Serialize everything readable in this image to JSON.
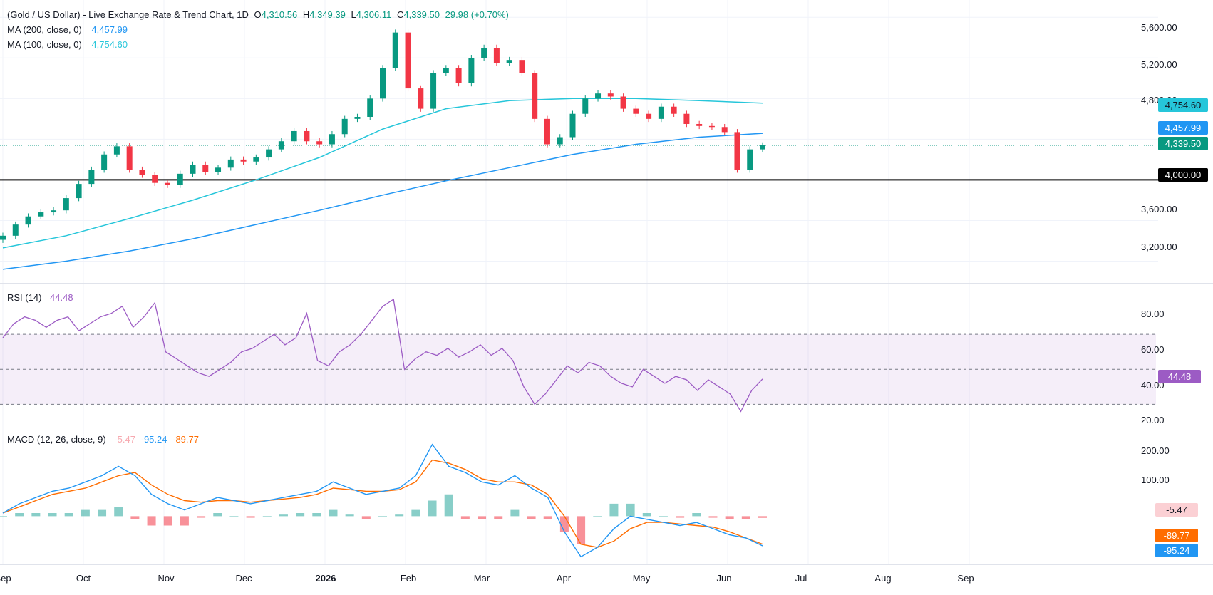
{
  "header": {
    "title": "(Gold / US Dollar) - Live Exchange Rate & Trend Chart, 1D",
    "ohlc": {
      "o_label": "O",
      "o_value": "4,310.56",
      "h_label": "H",
      "h_value": "4,349.39",
      "l_label": "L",
      "l_value": "4,306.11",
      "c_label": "C",
      "c_value": "4,339.50",
      "change": "29.98 (+0.70%)"
    },
    "ma200_label": "MA (200, close, 0)",
    "ma200_value": "4,457.99",
    "ma100_label": "MA (100, close, 0)",
    "ma100_value": "4,754.60"
  },
  "price_axis": {
    "ticks": [
      "5,600.00",
      "5,200.00",
      "4,800.00",
      "3,600.00",
      "3,200.00"
    ],
    "tags": {
      "ma100": "4,754.60",
      "ma200": "4,457.99",
      "last": "4,339.50",
      "level": "4,000.00"
    }
  },
  "rsi": {
    "label": "RSI (14)",
    "value": "44.48",
    "ticks": [
      "80.00",
      "60.00",
      "40.00",
      "20.00"
    ],
    "tag": "44.48"
  },
  "macd": {
    "label": "MACD (12, 26, close, 9)",
    "hist_value": "-5.47",
    "macd_value": "-95.24",
    "signal_value": "-89.77",
    "ticks": [
      "200.00",
      "100.00"
    ],
    "tags": {
      "hist": "-5.47",
      "signal": "-89.77",
      "macd": "-95.24"
    }
  },
  "time_axis": {
    "labels": [
      "Sep",
      "Oct",
      "Nov",
      "Dec",
      "2026",
      "Feb",
      "Mar",
      "Apr",
      "May",
      "Jun",
      "Jul",
      "Aug",
      "Sep"
    ]
  },
  "colors": {
    "up": "#089981",
    "down": "#f23645",
    "ma100": "#26c6da",
    "ma200": "#2196f3",
    "rsi": "#9c5bc4",
    "macd": "#2196f3",
    "signal": "#ff6d00",
    "hist_up": "#26a69a",
    "hist_down": "#f23645",
    "level": "#000000"
  },
  "chart_data": [
    {
      "type": "candlestick",
      "title": "(Gold / US Dollar) - Live Exchange Rate & Trend Chart, 1D",
      "x_range": [
        "Sep",
        "Jun"
      ],
      "ylim": [
        3000,
        5700
      ],
      "horizontal_line": 4000,
      "close_points": [
        [
          "Sep",
          3450
        ],
        [
          "Sep",
          3560
        ],
        [
          "Sep",
          3640
        ],
        [
          "Sep",
          3680
        ],
        [
          "Sep",
          3700
        ],
        [
          "Oct",
          3820
        ],
        [
          "Oct",
          3960
        ],
        [
          "Oct",
          4100
        ],
        [
          "Oct",
          4250
        ],
        [
          "Oct",
          4330
        ],
        [
          "Oct",
          4100
        ],
        [
          "Oct",
          4050
        ],
        [
          "Nov",
          3970
        ],
        [
          "Nov",
          3950
        ],
        [
          "Nov",
          4060
        ],
        [
          "Nov",
          4150
        ],
        [
          "Nov",
          4080
        ],
        [
          "Nov",
          4120
        ],
        [
          "Dec",
          4200
        ],
        [
          "Dec",
          4180
        ],
        [
          "Dec",
          4220
        ],
        [
          "Dec",
          4300
        ],
        [
          "Dec",
          4380
        ],
        [
          "Dec",
          4480
        ],
        [
          "Dec",
          4380
        ],
        [
          "2026",
          4350
        ],
        [
          "2026",
          4450
        ],
        [
          "2026",
          4600
        ],
        [
          "2026",
          4620
        ],
        [
          "2026",
          4800
        ],
        [
          "2026",
          5100
        ],
        [
          "2026",
          5450
        ],
        [
          "Feb",
          4900
        ],
        [
          "Feb",
          4700
        ],
        [
          "Feb",
          5050
        ],
        [
          "Feb",
          5100
        ],
        [
          "Feb",
          4950
        ],
        [
          "Feb",
          5200
        ],
        [
          "Mar",
          5300
        ],
        [
          "Mar",
          5150
        ],
        [
          "Mar",
          5180
        ],
        [
          "Mar",
          5050
        ],
        [
          "Mar",
          4600
        ],
        [
          "Mar",
          4350
        ],
        [
          "Mar",
          4420
        ],
        [
          "Apr",
          4650
        ],
        [
          "Apr",
          4800
        ],
        [
          "Apr",
          4850
        ],
        [
          "Apr",
          4820
        ],
        [
          "Apr",
          4700
        ],
        [
          "May",
          4650
        ],
        [
          "May",
          4600
        ],
        [
          "May",
          4720
        ],
        [
          "May",
          4650
        ],
        [
          "May",
          4550
        ],
        [
          "May",
          4530
        ],
        [
          "Jun",
          4520
        ],
        [
          "Jun",
          4470
        ],
        [
          "Jun",
          4100
        ],
        [
          "Jun",
          4300
        ],
        [
          "Jun",
          4339.5
        ]
      ],
      "series": [
        {
          "name": "MA (200, close, 0)",
          "last": 4457.99
        },
        {
          "name": "MA (100, close, 0)",
          "last": 4754.6
        }
      ]
    },
    {
      "type": "line",
      "title": "RSI (14)",
      "ylim": [
        20,
        90
      ],
      "bands": [
        30,
        50,
        70
      ],
      "series": [
        {
          "name": "RSI (14)",
          "values": [
            68,
            76,
            80,
            78,
            74,
            78,
            80,
            72,
            76,
            80,
            82,
            86,
            74,
            80,
            88,
            60,
            56,
            52,
            48,
            46,
            50,
            54,
            60,
            62,
            66,
            70,
            64,
            68,
            82,
            55,
            52,
            60,
            64,
            70,
            78,
            86,
            90,
            50,
            56,
            60,
            58,
            62,
            57,
            60,
            64,
            58,
            62,
            55,
            40,
            30,
            36,
            44,
            52,
            48,
            54,
            52,
            46,
            42,
            40,
            50,
            46,
            42,
            46,
            44,
            38,
            44,
            40,
            36,
            26,
            38,
            44.48
          ]
        }
      ]
    },
    {
      "type": "line",
      "title": "MACD (12, 26, close, 9)",
      "ylim": [
        -150,
        250
      ],
      "series": [
        {
          "name": "MACD",
          "values": [
            10,
            40,
            60,
            80,
            90,
            110,
            130,
            160,
            130,
            70,
            40,
            20,
            40,
            60,
            50,
            40,
            50,
            60,
            70,
            80,
            110,
            90,
            70,
            80,
            90,
            130,
            230,
            160,
            140,
            110,
            100,
            130,
            90,
            60,
            -50,
            -130,
            -100,
            -40,
            0,
            -10,
            -20,
            -30,
            -20,
            -40,
            -60,
            -70,
            -95.24
          ]
        },
        {
          "name": "Signal",
          "values": [
            10,
            30,
            50,
            70,
            80,
            90,
            110,
            130,
            140,
            100,
            70,
            50,
            45,
            50,
            50,
            45,
            50,
            55,
            60,
            70,
            90,
            85,
            80,
            80,
            85,
            110,
            180,
            170,
            150,
            120,
            110,
            110,
            100,
            70,
            0,
            -90,
            -100,
            -80,
            -40,
            -20,
            -20,
            -25,
            -30,
            -35,
            -50,
            -70,
            -89.77
          ]
        },
        {
          "name": "Histogram",
          "values": [
            0,
            10,
            10,
            10,
            10,
            20,
            20,
            30,
            -10,
            -30,
            -30,
            -30,
            -5,
            10,
            0,
            -5,
            0,
            5,
            10,
            10,
            20,
            5,
            -10,
            0,
            5,
            20,
            50,
            70,
            -10,
            -10,
            -10,
            20,
            -10,
            -10,
            -50,
            -90,
            0,
            40,
            40,
            10,
            0,
            -5,
            10,
            -5,
            -10,
            -10,
            -5.47
          ]
        }
      ]
    }
  ]
}
